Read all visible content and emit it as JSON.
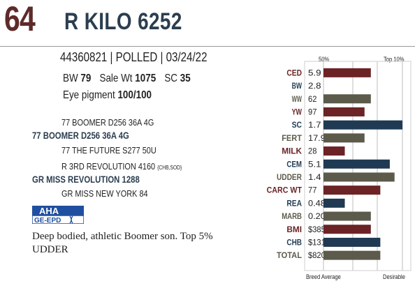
{
  "header": {
    "lot_number": "64",
    "animal_name": "R KILO 6252"
  },
  "info": {
    "registration": "44360821",
    "polled": "POLLED",
    "birth_date": "03/24/22",
    "bw_label": "BW",
    "bw_value": "79",
    "sale_wt_label": "Sale Wt",
    "sale_wt_value": "1075",
    "sc_label": "SC",
    "sc_value": "35",
    "eye_label": "Eye pigment",
    "eye_value": "100/100"
  },
  "pedigree": {
    "sire_sire": "77 BOOMER D256 36A 4G",
    "sire": "77 BOOMER D256 36A 4G",
    "sire_dam": "77 THE FUTURE S277 50U",
    "dam_sire": "R 3RD REVOLUTION 4160",
    "dam_sire_suffix": "{CHB,SOD}",
    "dam": "GR MISS REVOLUTION 1288",
    "dam_dam": "GR MISS NEW YORK 84"
  },
  "logo": {
    "top_text": "AHA",
    "bottom_text": "GE-EPD"
  },
  "comment": "Deep bodied, athletic Boomer son. Top 5% UDDER",
  "colors": {
    "maroon": "#6b2326",
    "navy": "#1f3a52",
    "olive": "#5c5a4a",
    "lot": "#5e2a2a"
  },
  "chart_data": {
    "type": "bar",
    "top_left_label": "50%",
    "top_right_label": "Top 10%",
    "bottom_left_label": "Breed Average",
    "bottom_right_label": "Desirable",
    "categories": [
      "CED",
      "BW",
      "WW",
      "YW",
      "SC",
      "FERT",
      "MILK",
      "CEM",
      "UDDER",
      "CARC WT",
      "REA",
      "MARB",
      "BMI",
      "CHB",
      "TOTAL"
    ],
    "values": [
      "5.9",
      "2.8",
      "62",
      "97",
      "1.7",
      "17.9",
      "28",
      "5.1",
      "1.4",
      "77",
      "0.48",
      "0.20",
      "$385",
      "$131",
      "$820"
    ],
    "bar_lengths_pct": [
      60,
      0,
      60,
      52,
      100,
      52,
      27,
      84,
      90,
      72,
      27,
      60,
      60,
      72,
      72
    ],
    "bar_colors": [
      "maroon",
      "",
      "olive",
      "maroon",
      "navy",
      "olive",
      "maroon",
      "navy",
      "olive",
      "maroon",
      "navy",
      "olive",
      "maroon",
      "navy",
      "olive"
    ],
    "label_colors": [
      "maroon",
      "navy",
      "olive",
      "maroon",
      "navy",
      "olive",
      "maroon",
      "navy",
      "olive",
      "maroon",
      "navy",
      "olive",
      "maroon",
      "navy",
      "olive"
    ]
  }
}
